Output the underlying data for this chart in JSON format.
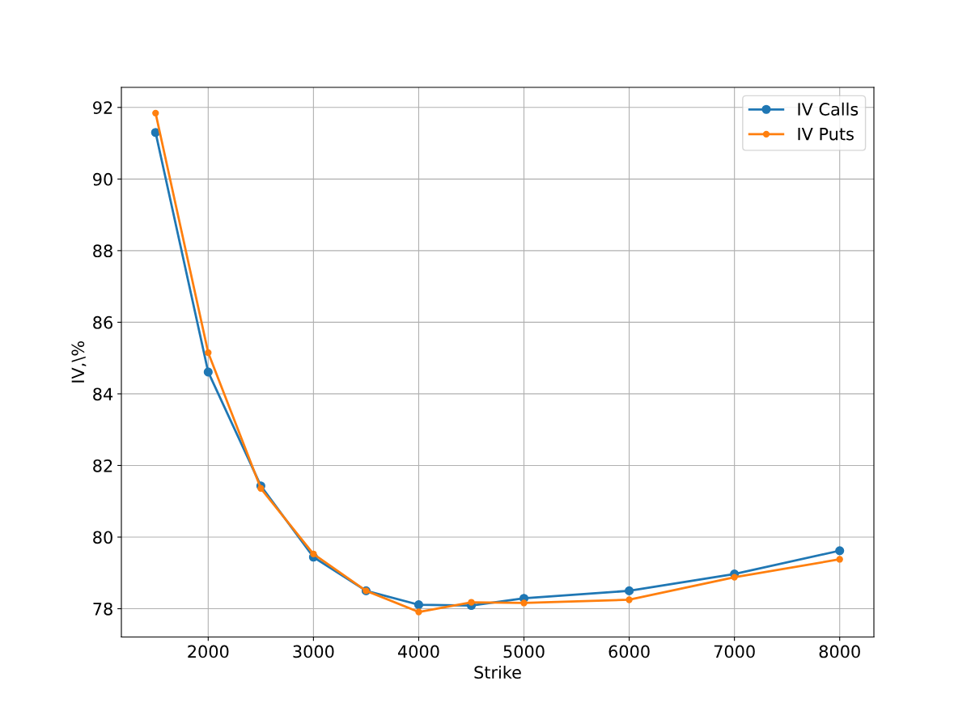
{
  "chart_data": {
    "type": "line",
    "xlabel": "Strike",
    "ylabel": "IV,\\%",
    "x": [
      1500,
      2000,
      2500,
      3000,
      3500,
      4000,
      4500,
      5000,
      6000,
      7000,
      8000
    ],
    "series": [
      {
        "name": "IV Calls",
        "color": "#1f77b4",
        "values": [
          91.3,
          84.61,
          81.43,
          79.44,
          78.5,
          78.11,
          78.09,
          78.29,
          78.5,
          78.97,
          79.62
        ]
      },
      {
        "name": "IV Puts",
        "color": "#ff7f0e",
        "values": [
          91.84,
          85.15,
          81.36,
          79.53,
          78.5,
          77.91,
          78.18,
          78.16,
          78.25,
          78.88,
          79.38
        ]
      }
    ],
    "xlim": [
      1175,
      8325
    ],
    "xticks": [
      2000,
      3000,
      4000,
      5000,
      6000,
      7000,
      8000
    ],
    "ylim": [
      77.21,
      92.56
    ],
    "yticks": [
      78,
      80,
      82,
      84,
      86,
      88,
      90,
      92
    ],
    "grid": true,
    "legend": "top right",
    "marker": "circle",
    "line_style": "solid"
  }
}
